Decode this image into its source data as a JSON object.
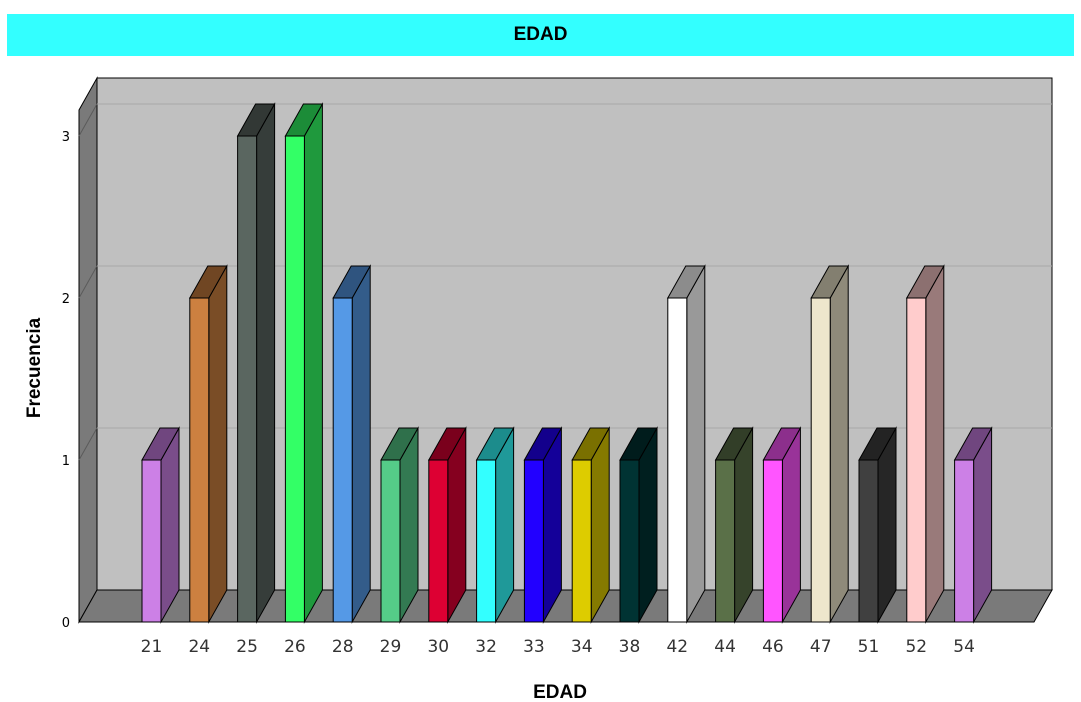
{
  "chart_data": {
    "type": "bar",
    "title": "EDAD",
    "xlabel": "EDAD",
    "ylabel": "Frecuencia",
    "categories": [
      "21",
      "24",
      "25",
      "26",
      "28",
      "29",
      "30",
      "32",
      "33",
      "34",
      "38",
      "42",
      "44",
      "46",
      "47",
      "51",
      "52",
      "54"
    ],
    "values": [
      1,
      2,
      3,
      3,
      2,
      1,
      1,
      1,
      1,
      1,
      1,
      2,
      1,
      1,
      2,
      1,
      2,
      1
    ],
    "ylim": [
      0,
      3
    ],
    "yticks": [
      "0",
      "1",
      "2",
      "3"
    ],
    "grid": true,
    "colors": [
      "#cc80e6",
      "#cc8040",
      "#5a6660",
      "#33ff66",
      "#5599e6",
      "#55cc88",
      "#dd0033",
      "#33ffff",
      "#2200ff",
      "#ddcc00",
      "#003333",
      "#ffffff",
      "#5a7048",
      "#ff55ff",
      "#eee6cc",
      "#404040",
      "#ffcccc",
      "#cc80e6"
    ]
  }
}
